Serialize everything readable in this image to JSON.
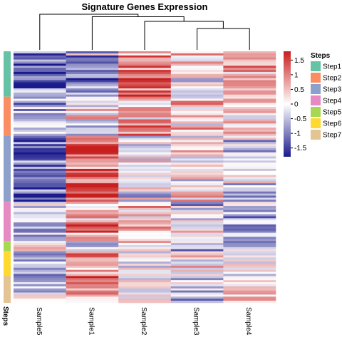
{
  "chart_data": {
    "type": "heatmap",
    "title": "Signature Genes Expression",
    "columns": [
      "Sample5",
      "Sample1",
      "Sample2",
      "Sample3",
      "Sample4"
    ],
    "annotation": {
      "title": "Steps",
      "label": "Steps",
      "groups": [
        {
          "name": "Step1",
          "count": 22,
          "color": "#66C2A5"
        },
        {
          "name": "Step2",
          "count": 19,
          "color": "#FC8D62"
        },
        {
          "name": "Step3",
          "count": 32,
          "color": "#8DA0CB"
        },
        {
          "name": "Step4",
          "count": 19,
          "color": "#E78AC3"
        },
        {
          "name": "Step5",
          "count": 5,
          "color": "#A6D854"
        },
        {
          "name": "Step6",
          "count": 12,
          "color": "#FFD92F"
        },
        {
          "name": "Step7",
          "count": 13,
          "color": "#E5C494"
        }
      ]
    },
    "color_scale": {
      "low": "#1A1A8C",
      "mid": "#FFFFFF",
      "high": "#C81E1E",
      "range": [
        -1.8,
        1.8
      ],
      "ticks": [
        {
          "value": 1.5,
          "label": "1.5"
        },
        {
          "value": 1,
          "label": "1"
        },
        {
          "value": 0.5,
          "label": "0.5"
        },
        {
          "value": 0,
          "label": "0"
        },
        {
          "value": -0.5,
          "label": "-0.5"
        },
        {
          "value": -1,
          "label": "-1"
        },
        {
          "value": -1.5,
          "label": "-1.5"
        }
      ]
    },
    "column_dendrogram": {
      "merges": [
        {
          "left": "Sample3",
          "right": "Sample4",
          "height": 0.6
        },
        {
          "left": "Sample2",
          "right": "Sample3+Sample4",
          "height": 0.8
        },
        {
          "left": "Sample1",
          "right": "Sample2+Sample3+Sample4",
          "height": 0.93
        },
        {
          "left": "Sample5",
          "right": "Sample1+Sample2+Sample3+Sample4",
          "height": 1.0
        }
      ]
    },
    "row_pattern": {
      "Step1": [
        -1.1,
        -0.7,
        1.1,
        0.2,
        0.6
      ],
      "Step2": [
        -0.6,
        -0.1,
        0.7,
        0.4,
        0.2
      ],
      "Step3": [
        -1.3,
        1.3,
        -0.1,
        0.1,
        -0.2
      ],
      "Step4": [
        -0.4,
        0.7,
        0.5,
        -0.1,
        -0.5
      ],
      "Step5": [
        0.6,
        -0.5,
        0.4,
        -0.2,
        -0.3
      ],
      "Step6": [
        -0.5,
        0.6,
        0.2,
        0.0,
        -0.1
      ],
      "Step7": [
        -0.2,
        0.9,
        -0.1,
        -0.6,
        0.4
      ]
    }
  }
}
